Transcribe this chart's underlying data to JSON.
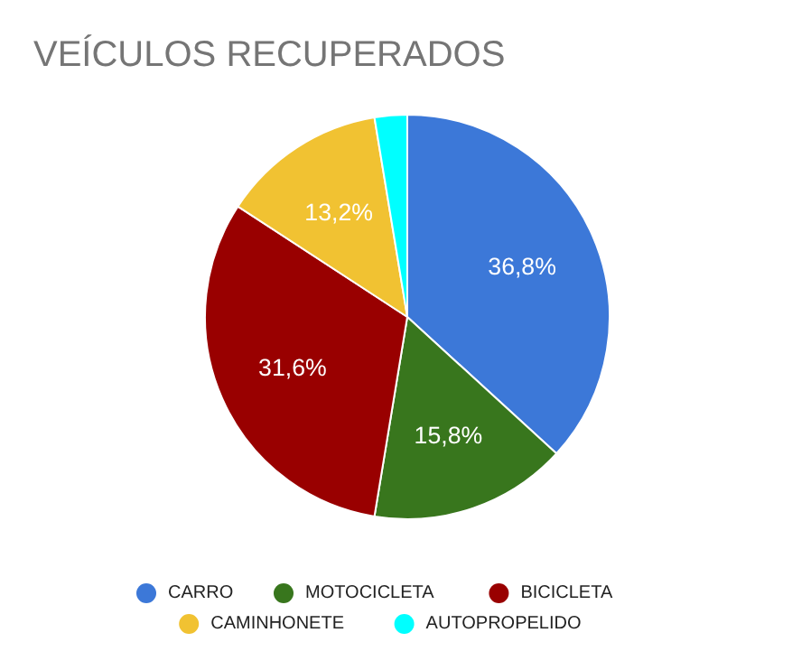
{
  "chart_data": {
    "type": "pie",
    "title": "VEÍCULOS RECUPERADOS",
    "categories": [
      "CARRO",
      "MOTOCICLETA",
      "BICICLETA",
      "CAMINHONETE",
      "AUTOPROPELIDO"
    ],
    "values": [
      36.8,
      15.8,
      31.6,
      13.2,
      2.6
    ],
    "colors": [
      "#3c78d8",
      "#38761d",
      "#990000",
      "#f1c232",
      "#00ffff"
    ],
    "value_labels": [
      "36,8%",
      "15,8%",
      "31,6%",
      "13,2%",
      null
    ],
    "legend": "bottom"
  }
}
